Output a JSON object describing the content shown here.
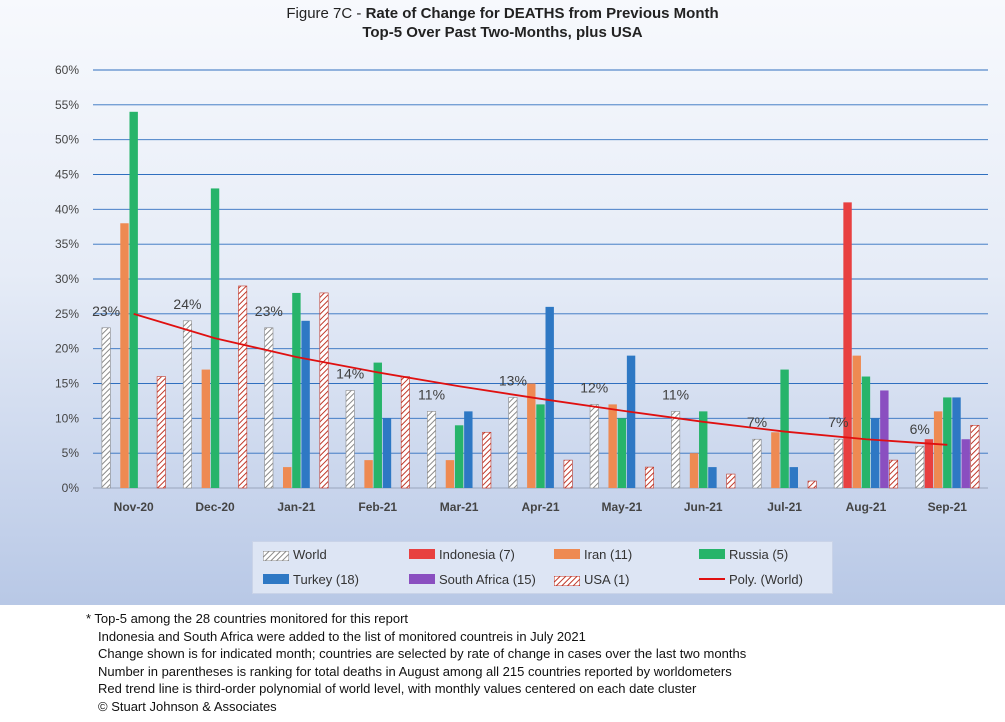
{
  "title": {
    "prefix": "Figure 7C - ",
    "main": "Rate of Change for DEATHS from Previous Month",
    "subtitle": "Top-5 Over Past Two-Months, plus USA"
  },
  "chart_data": {
    "type": "bar",
    "title": "Figure 7C - Rate of Change for DEATHS from Previous Month",
    "subtitle": "Top-5 Over Past Two-Months, plus USA",
    "categories": [
      "Nov-20",
      "Dec-20",
      "Jan-21",
      "Feb-21",
      "Mar-21",
      "Apr-21",
      "May-21",
      "Jun-21",
      "Jul-21",
      "Aug-21",
      "Sep-21"
    ],
    "ylim": [
      0,
      60
    ],
    "yticks": [
      "0%",
      "5%",
      "10%",
      "15%",
      "20%",
      "25%",
      "30%",
      "35%",
      "40%",
      "45%",
      "50%",
      "55%",
      "60%"
    ],
    "grid": true,
    "legend_position": "bottom",
    "series": [
      {
        "name": "World",
        "color": "#bfbfbf",
        "pattern": "hatch-gray",
        "values": [
          23,
          24,
          23,
          14,
          11,
          13,
          12,
          11,
          7,
          7,
          6
        ]
      },
      {
        "name": "Indonesia (7)",
        "color": "#e84040",
        "values": [
          null,
          null,
          null,
          null,
          null,
          null,
          null,
          null,
          null,
          41,
          7
        ]
      },
      {
        "name": "Iran (11)",
        "color": "#ee8a52",
        "values": [
          38,
          17,
          3,
          4,
          4,
          15,
          12,
          5,
          8,
          19,
          11
        ]
      },
      {
        "name": "Russia (5)",
        "color": "#27b46a",
        "values": [
          54,
          43,
          28,
          18,
          9,
          12,
          10,
          11,
          17,
          16,
          13
        ]
      },
      {
        "name": "Turkey (18)",
        "color": "#2e78c4",
        "values": [
          null,
          null,
          24,
          10,
          11,
          26,
          19,
          3,
          3,
          10,
          13
        ]
      },
      {
        "name": "South Africa (15)",
        "color": "#8a4fc0",
        "values": [
          null,
          null,
          null,
          null,
          null,
          null,
          null,
          null,
          null,
          14,
          7
        ]
      },
      {
        "name": "USA (1)",
        "color": "#c0392b",
        "pattern": "hatch-red",
        "values": [
          16,
          29,
          28,
          16,
          8,
          4,
          3,
          2,
          1,
          4,
          9
        ]
      }
    ],
    "data_labels": [
      "23%",
      "24%",
      "23%",
      "14%",
      "11%",
      "13%",
      "12%",
      "11%",
      "7%",
      "7%",
      "6%"
    ],
    "trendline": {
      "name": "Poly. (World)",
      "color": "#e01010",
      "values": [
        25,
        21.5,
        18.8,
        16.6,
        14.6,
        12.8,
        11.1,
        9.5,
        8.1,
        7,
        6.2
      ]
    }
  },
  "legend": {
    "items": [
      {
        "label": "World"
      },
      {
        "label": "Indonesia (7)"
      },
      {
        "label": "Iran (11)"
      },
      {
        "label": "Russia (5)"
      },
      {
        "label": "Turkey (18)"
      },
      {
        "label": "South Africa (15)"
      },
      {
        "label": "USA (1)"
      },
      {
        "label": "Poly. (World)"
      }
    ]
  },
  "notes": [
    "* Top-5 among the 28 countries monitored for this report",
    "Indonesia and South Africa were added to the list of monitored countreis in July 2021",
    "Change shown is for indicated month; countries are selected by rate of change in cases over the last two months",
    "Number in parentheses is ranking for total deaths in August among all 215 countries reported by worldometers",
    "Red trend line is third-order polynomial of world level, with monthly values centered on each date cluster",
    "© Stuart Johnson & Associates"
  ]
}
